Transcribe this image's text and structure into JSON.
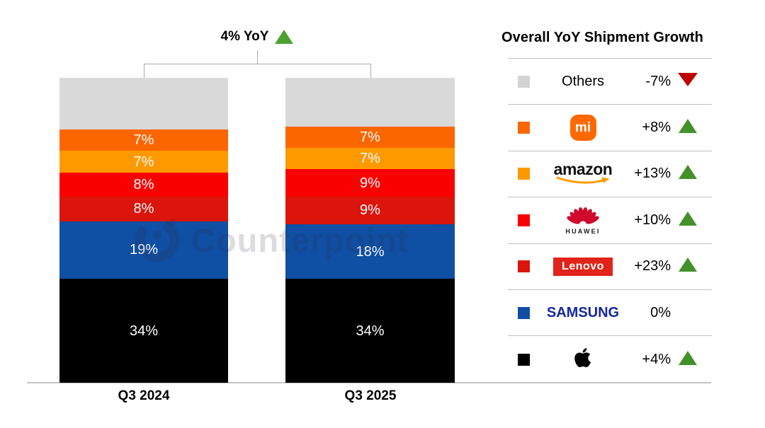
{
  "header": {
    "title": "4% YoY",
    "trend": "up"
  },
  "watermark": {
    "text": "Counterpoint"
  },
  "chart_data": {
    "type": "bar",
    "stacked": true,
    "unit": "% share of shipments",
    "title": "4% YoY",
    "categories": [
      "Q3 2024",
      "Q3 2025"
    ],
    "series_top_to_bottom": [
      {
        "name": "Others",
        "color": "#D9D9D9",
        "values": [
          17,
          16
        ],
        "show_label": false
      },
      {
        "name": "Xiaomi",
        "color": "#FC6600",
        "values": [
          7,
          7
        ],
        "show_label": true
      },
      {
        "name": "Amazon",
        "color": "#FF9900",
        "values": [
          7,
          7
        ],
        "show_label": true
      },
      {
        "name": "Huawei",
        "color": "#FB0000",
        "values": [
          8,
          9
        ],
        "show_label": true
      },
      {
        "name": "Lenovo",
        "color": "#DB150C",
        "values": [
          8,
          9
        ],
        "show_label": true
      },
      {
        "name": "Samsung",
        "color": "#0F4FA4",
        "values": [
          19,
          18
        ],
        "show_label": true
      },
      {
        "name": "Apple",
        "color": "#000000",
        "values": [
          34,
          34
        ],
        "show_label": true
      }
    ],
    "legend_position": "right",
    "grid": false
  },
  "legend": {
    "header": "Overall YoY Shipment Growth",
    "rows": [
      {
        "brand": "Others",
        "logo_text": "Others",
        "growth": "-7%",
        "trend": "down",
        "swatch": "#D3D3D3"
      },
      {
        "brand": "Xiaomi",
        "logo_text": "mi",
        "growth": "+8%",
        "trend": "up",
        "swatch": "#FC6600"
      },
      {
        "brand": "Amazon",
        "logo_text": "amazon",
        "growth": "+13%",
        "trend": "up",
        "swatch": "#FF9900"
      },
      {
        "brand": "Huawei",
        "logo_text": "HUAWEI",
        "growth": "+10%",
        "trend": "up",
        "swatch": "#FB0000"
      },
      {
        "brand": "Lenovo",
        "logo_text": "Lenovo",
        "growth": "+23%",
        "trend": "up",
        "swatch": "#DB150C"
      },
      {
        "brand": "Samsung",
        "logo_text": "SAMSUNG",
        "growth": "0%",
        "trend": "flat",
        "swatch": "#0F4FA4"
      },
      {
        "brand": "Apple",
        "logo_text": "",
        "growth": "+4%",
        "trend": "up",
        "swatch": "#000000"
      }
    ]
  },
  "colors": {
    "up_triangle_title": "#4BA231",
    "up_triangle_legend": "#44902B",
    "down_triangle": "#C00000",
    "axis_line": "#C3C3C3",
    "bracket": "#ABABAB"
  }
}
